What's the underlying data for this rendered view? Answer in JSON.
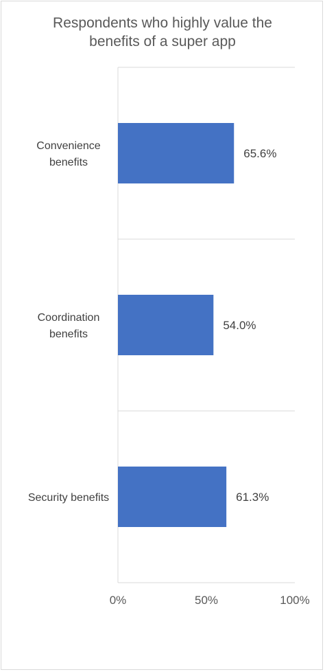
{
  "chart_data": {
    "type": "bar",
    "orientation": "horizontal",
    "title_lines": [
      "Respondents who highly value the",
      "benefits of a super app"
    ],
    "categories": [
      [
        "Convenience",
        "benefits"
      ],
      [
        "Coordination",
        "benefits"
      ],
      [
        "Security benefits"
      ]
    ],
    "values": [
      65.6,
      54.0,
      61.3
    ],
    "value_labels": [
      "65.6%",
      "54.0%",
      "61.3%"
    ],
    "xlim": [
      0,
      100
    ],
    "x_ticks": [
      0,
      50,
      100
    ],
    "x_tick_labels": [
      "0%",
      "50%",
      "100%"
    ],
    "grid": "horizontal separators between categories",
    "bar_color": "#4472c4",
    "axis_color": "#d9d9d9"
  }
}
